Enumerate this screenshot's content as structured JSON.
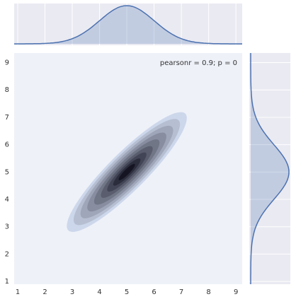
{
  "chart_data": {
    "type": "kde-joint",
    "annotation": "pearsonr = 0.9; p = 0",
    "xlim": [
      0.87,
      9.23
    ],
    "ylim": [
      0.9,
      9.35
    ],
    "xticks": [
      1,
      2,
      3,
      4,
      5,
      6,
      7,
      8,
      9
    ],
    "yticks": [
      1,
      2,
      3,
      4,
      5,
      6,
      7,
      8,
      9
    ],
    "kde": {
      "center": [
        5,
        5
      ],
      "sd": [
        1,
        1
      ],
      "r": 0.9,
      "levels": [
        2.2,
        1.95,
        1.7,
        1.45,
        1.2,
        0.95,
        0.72,
        0.5,
        0.3
      ]
    },
    "color": "#4c72b0"
  }
}
